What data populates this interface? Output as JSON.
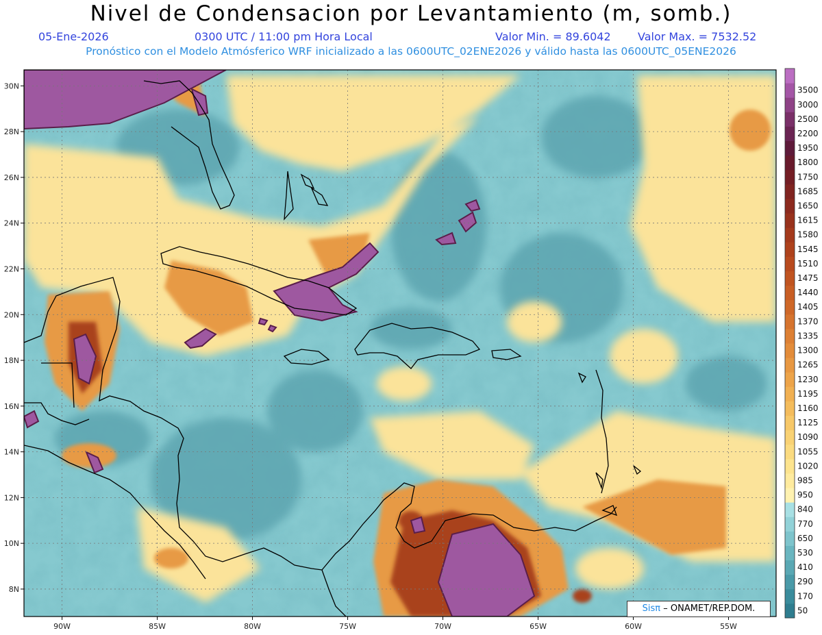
{
  "title": "Nivel de Condensacion por Levantamiento (m, somb.)",
  "date_label": "05-Ene-2026",
  "time_label": "0300 UTC / 11:00 pm Hora Local",
  "min_label": "Valor Min. = 89.6042",
  "max_label": "Valor Max. = 7532.52",
  "model_label": "Pronóstico con el Modelo Atmósferico WRF inicializado a las 0600UTC_02ENE2026 y válido hasta las  0600UTC_05ENE2026",
  "credit": {
    "brand": "Sisπ",
    "org": "– ONAMET/REP.DOM."
  },
  "map_extent": {
    "lon_min": -92,
    "lon_max": -52.5,
    "lat_min": 6.8,
    "lat_max": 30.7
  },
  "lat_ticks": [
    {
      "value": 30,
      "label": "30N"
    },
    {
      "value": 28,
      "label": "28N"
    },
    {
      "value": 26,
      "label": "26N"
    },
    {
      "value": 24,
      "label": "24N"
    },
    {
      "value": 22,
      "label": "22N"
    },
    {
      "value": 20,
      "label": "20N"
    },
    {
      "value": 18,
      "label": "18N"
    },
    {
      "value": 16,
      "label": "16N"
    },
    {
      "value": 14,
      "label": "14N"
    },
    {
      "value": 12,
      "label": "12N"
    },
    {
      "value": 10,
      "label": "10N"
    },
    {
      "value": 8,
      "label": "8N"
    }
  ],
  "lon_ticks": [
    {
      "value": -90,
      "label": "90W"
    },
    {
      "value": -85,
      "label": "85W"
    },
    {
      "value": -80,
      "label": "80W"
    },
    {
      "value": -75,
      "label": "75W"
    },
    {
      "value": -70,
      "label": "70W"
    },
    {
      "value": -65,
      "label": "65W"
    },
    {
      "value": -60,
      "label": "60W"
    },
    {
      "value": -55,
      "label": "55W"
    }
  ],
  "colorbar": [
    {
      "label": "50",
      "color": "#2f7d8f"
    },
    {
      "label": "170",
      "color": "#3a8c9c"
    },
    {
      "label": "290",
      "color": "#4a9aa8"
    },
    {
      "label": "410",
      "color": "#5aa8b4"
    },
    {
      "label": "530",
      "color": "#6ab6c0"
    },
    {
      "label": "650",
      "color": "#7ec4cc"
    },
    {
      "label": "770",
      "color": "#92d2d8"
    },
    {
      "label": "840",
      "color": "#a8e0e4"
    },
    {
      "label": "950",
      "color": "#fff2b0"
    },
    {
      "label": "985",
      "color": "#ffeb9e"
    },
    {
      "label": "1020",
      "color": "#fde48e"
    },
    {
      "label": "1055",
      "color": "#fbdb80"
    },
    {
      "label": "1090",
      "color": "#f9d274"
    },
    {
      "label": "1125",
      "color": "#f7c868"
    },
    {
      "label": "1160",
      "color": "#f4bc5c"
    },
    {
      "label": "1195",
      "color": "#f1b052"
    },
    {
      "label": "1230",
      "color": "#eda44a"
    },
    {
      "label": "1265",
      "color": "#e89842"
    },
    {
      "label": "1300",
      "color": "#e38c3a"
    },
    {
      "label": "1335",
      "color": "#dd8034"
    },
    {
      "label": "1370",
      "color": "#d6742e"
    },
    {
      "label": "1405",
      "color": "#cf6828"
    },
    {
      "label": "1440",
      "color": "#c85e24"
    },
    {
      "label": "1475",
      "color": "#c05420"
    },
    {
      "label": "1510",
      "color": "#b84a1e"
    },
    {
      "label": "1545",
      "color": "#ae421c"
    },
    {
      "label": "1580",
      "color": "#a43a1c"
    },
    {
      "label": "1615",
      "color": "#98321c"
    },
    {
      "label": "1650",
      "color": "#8c2a1e"
    },
    {
      "label": "1685",
      "color": "#802420"
    },
    {
      "label": "1750",
      "color": "#741e24"
    },
    {
      "label": "1800",
      "color": "#681a2c"
    },
    {
      "label": "1950",
      "color": "#5e1a3a"
    },
    {
      "label": "2200",
      "color": "#6a2452"
    },
    {
      "label": "2500",
      "color": "#7a3068"
    },
    {
      "label": "3000",
      "color": "#8e4286"
    },
    {
      "label": "3500",
      "color": "#a456a6"
    },
    {
      "label": "",
      "color": "#bb6ec2"
    }
  ]
}
